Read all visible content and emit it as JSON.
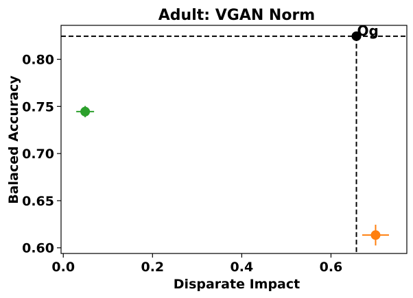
{
  "chart_data": {
    "type": "scatter",
    "title": "Adult: VGAN Norm",
    "xlabel": "Disparate Impact",
    "ylabel": "Balaced Accuracy",
    "xlim": [
      -0.005,
      0.77
    ],
    "ylim": [
      0.594,
      0.836
    ],
    "xticks": [
      0.0,
      0.2,
      0.4,
      0.6
    ],
    "xtick_labels": [
      "0.0",
      "0.2",
      "0.4",
      "0.6"
    ],
    "yticks": [
      0.6,
      0.65,
      0.7,
      0.75,
      0.8
    ],
    "ytick_labels": [
      "0.60",
      "0.65",
      "0.70",
      "0.75",
      "0.80"
    ],
    "grid": false,
    "reference": {
      "label": "Og",
      "x": 0.657,
      "y": 0.8245,
      "color": "#000000"
    },
    "points": [
      {
        "x": 0.049,
        "y": 0.7445,
        "xerr": 0.02,
        "yerr": 0.006,
        "color": "#2ca02c"
      },
      {
        "x": 0.7,
        "y": 0.6135,
        "xerr": 0.03,
        "yerr": 0.011,
        "color": "#ff7f0e"
      }
    ]
  }
}
